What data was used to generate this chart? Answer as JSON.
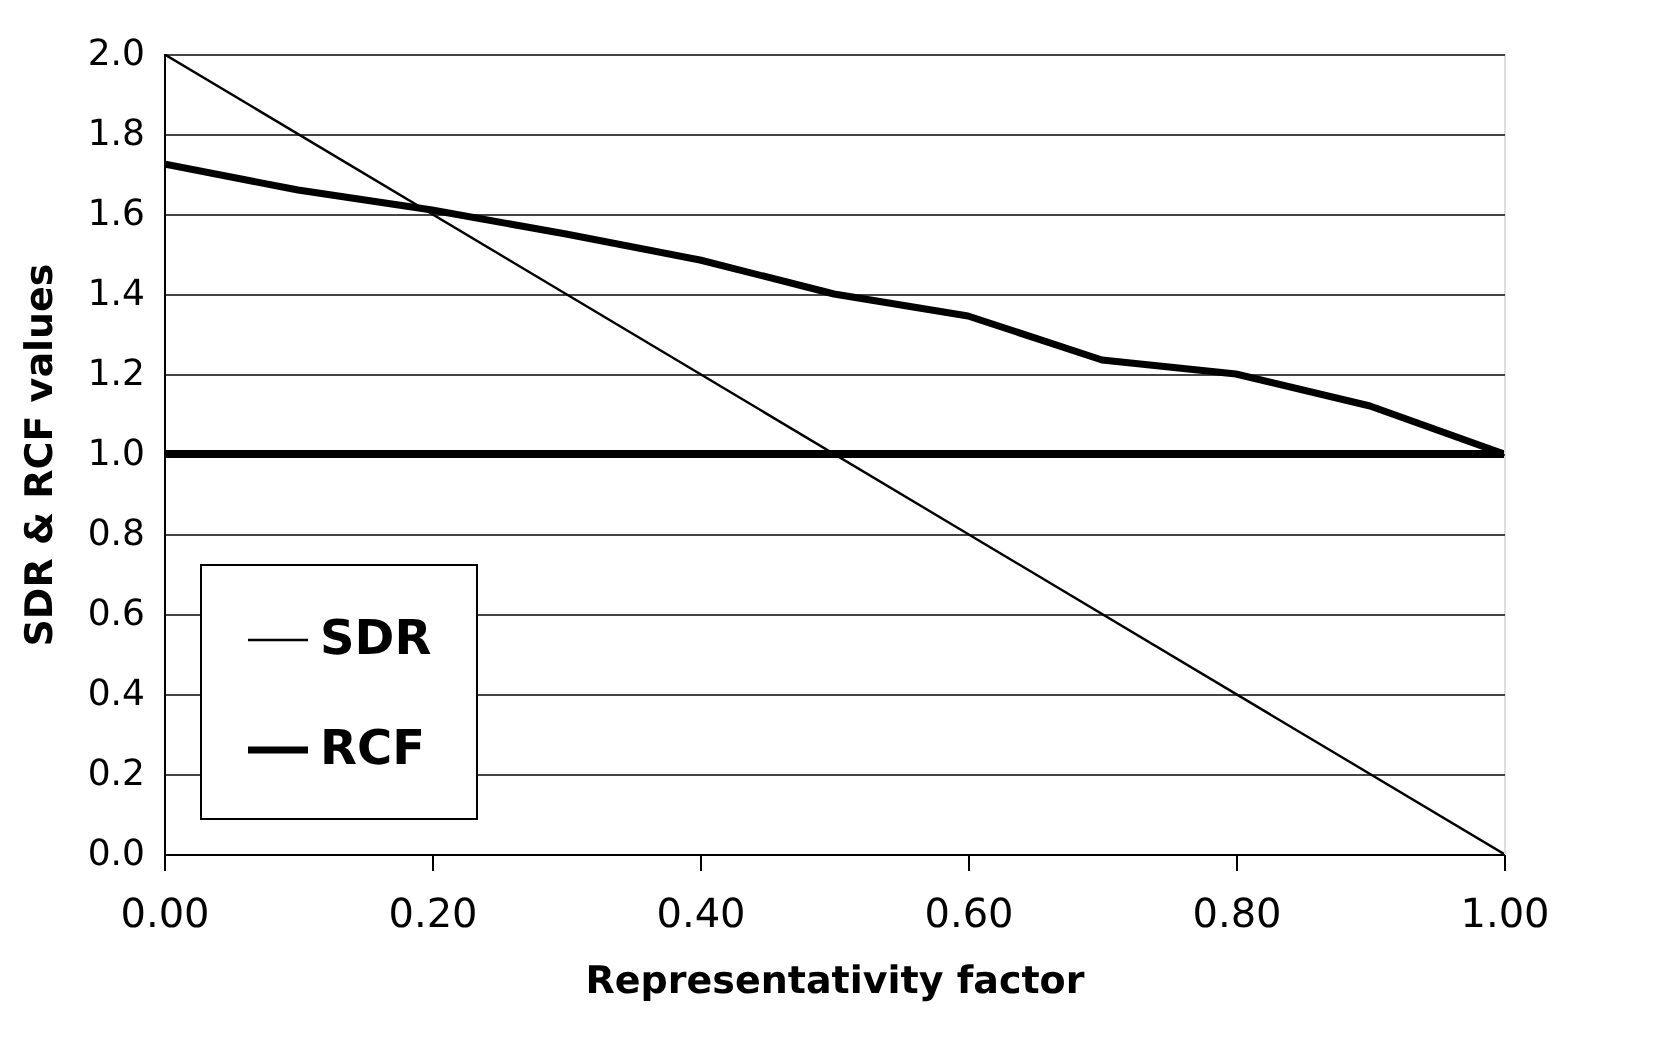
{
  "chart_data": {
    "type": "line",
    "xlabel": "Representativity factor",
    "ylabel": "SDR & RCF values",
    "series": [
      {
        "name": "SDR",
        "color": "#000000",
        "x": [
          0,
          1
        ],
        "values": [
          2.0,
          0.0
        ]
      },
      {
        "name": "RCF",
        "color": "#000000",
        "x": [
          0,
          0.1,
          0.2,
          0.3,
          0.4,
          0.5,
          0.6,
          0.7,
          0.8,
          0.9,
          1.0
        ],
        "values": [
          1.725,
          1.66,
          1.61,
          1.55,
          1.485,
          1.4,
          1.345,
          1.235,
          1.2,
          1.12,
          1.0
        ]
      }
    ],
    "xlim": [
      0,
      1
    ],
    "xticks": [
      {
        "value": 0,
        "label": "0.00"
      },
      {
        "value": 0.2,
        "label": "0.20"
      },
      {
        "value": 0.4,
        "label": "0.40"
      },
      {
        "value": 0.6,
        "label": "0.60"
      },
      {
        "value": 0.8,
        "label": "0.80"
      },
      {
        "value": 1,
        "label": "1.00"
      }
    ],
    "ylim": [
      0,
      2
    ],
    "yticks": [
      {
        "value": 0,
        "label": "0.0"
      },
      {
        "value": 0.2,
        "label": "0.2"
      },
      {
        "value": 0.4,
        "label": "0.4"
      },
      {
        "value": 0.6,
        "label": "0.6"
      },
      {
        "value": 0.8,
        "label": "0.8"
      },
      {
        "value": 1,
        "label": "1.0"
      },
      {
        "value": 1.2,
        "label": "1.2"
      },
      {
        "value": 1.4,
        "label": "1.4"
      },
      {
        "value": 1.6,
        "label": "1.6"
      },
      {
        "value": 1.8,
        "label": "1.8"
      },
      {
        "value": 2,
        "label": "2.0"
      }
    ],
    "ref_lines": [
      {
        "axis": "y",
        "value": 1.0,
        "color": "#000000"
      }
    ],
    "grid": "y",
    "legend": "bottom left",
    "marker": "none",
    "line_style": "solid"
  }
}
